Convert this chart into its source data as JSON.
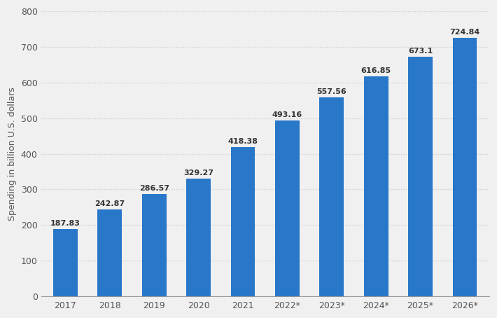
{
  "categories": [
    "2017",
    "2018",
    "2019",
    "2020",
    "2021",
    "2022*",
    "2023*",
    "2024*",
    "2025*",
    "2026*"
  ],
  "values": [
    187.83,
    242.87,
    286.57,
    329.27,
    418.38,
    493.16,
    557.56,
    616.85,
    673.1,
    724.84
  ],
  "bar_color": "#2877c9",
  "ylabel": "Spending in billion U.S. dollars",
  "ylim": [
    0,
    800
  ],
  "yticks": [
    0,
    100,
    200,
    300,
    400,
    500,
    600,
    700,
    800
  ],
  "figure_bg_color": "#f0f0f0",
  "plot_bg_color": "#f0f0f0",
  "grid_color": "#cccccc",
  "value_label_fontsize": 8,
  "ylabel_fontsize": 9,
  "tick_fontsize": 9,
  "bar_width": 0.55,
  "bar_gap_color": "#f0f0f0"
}
